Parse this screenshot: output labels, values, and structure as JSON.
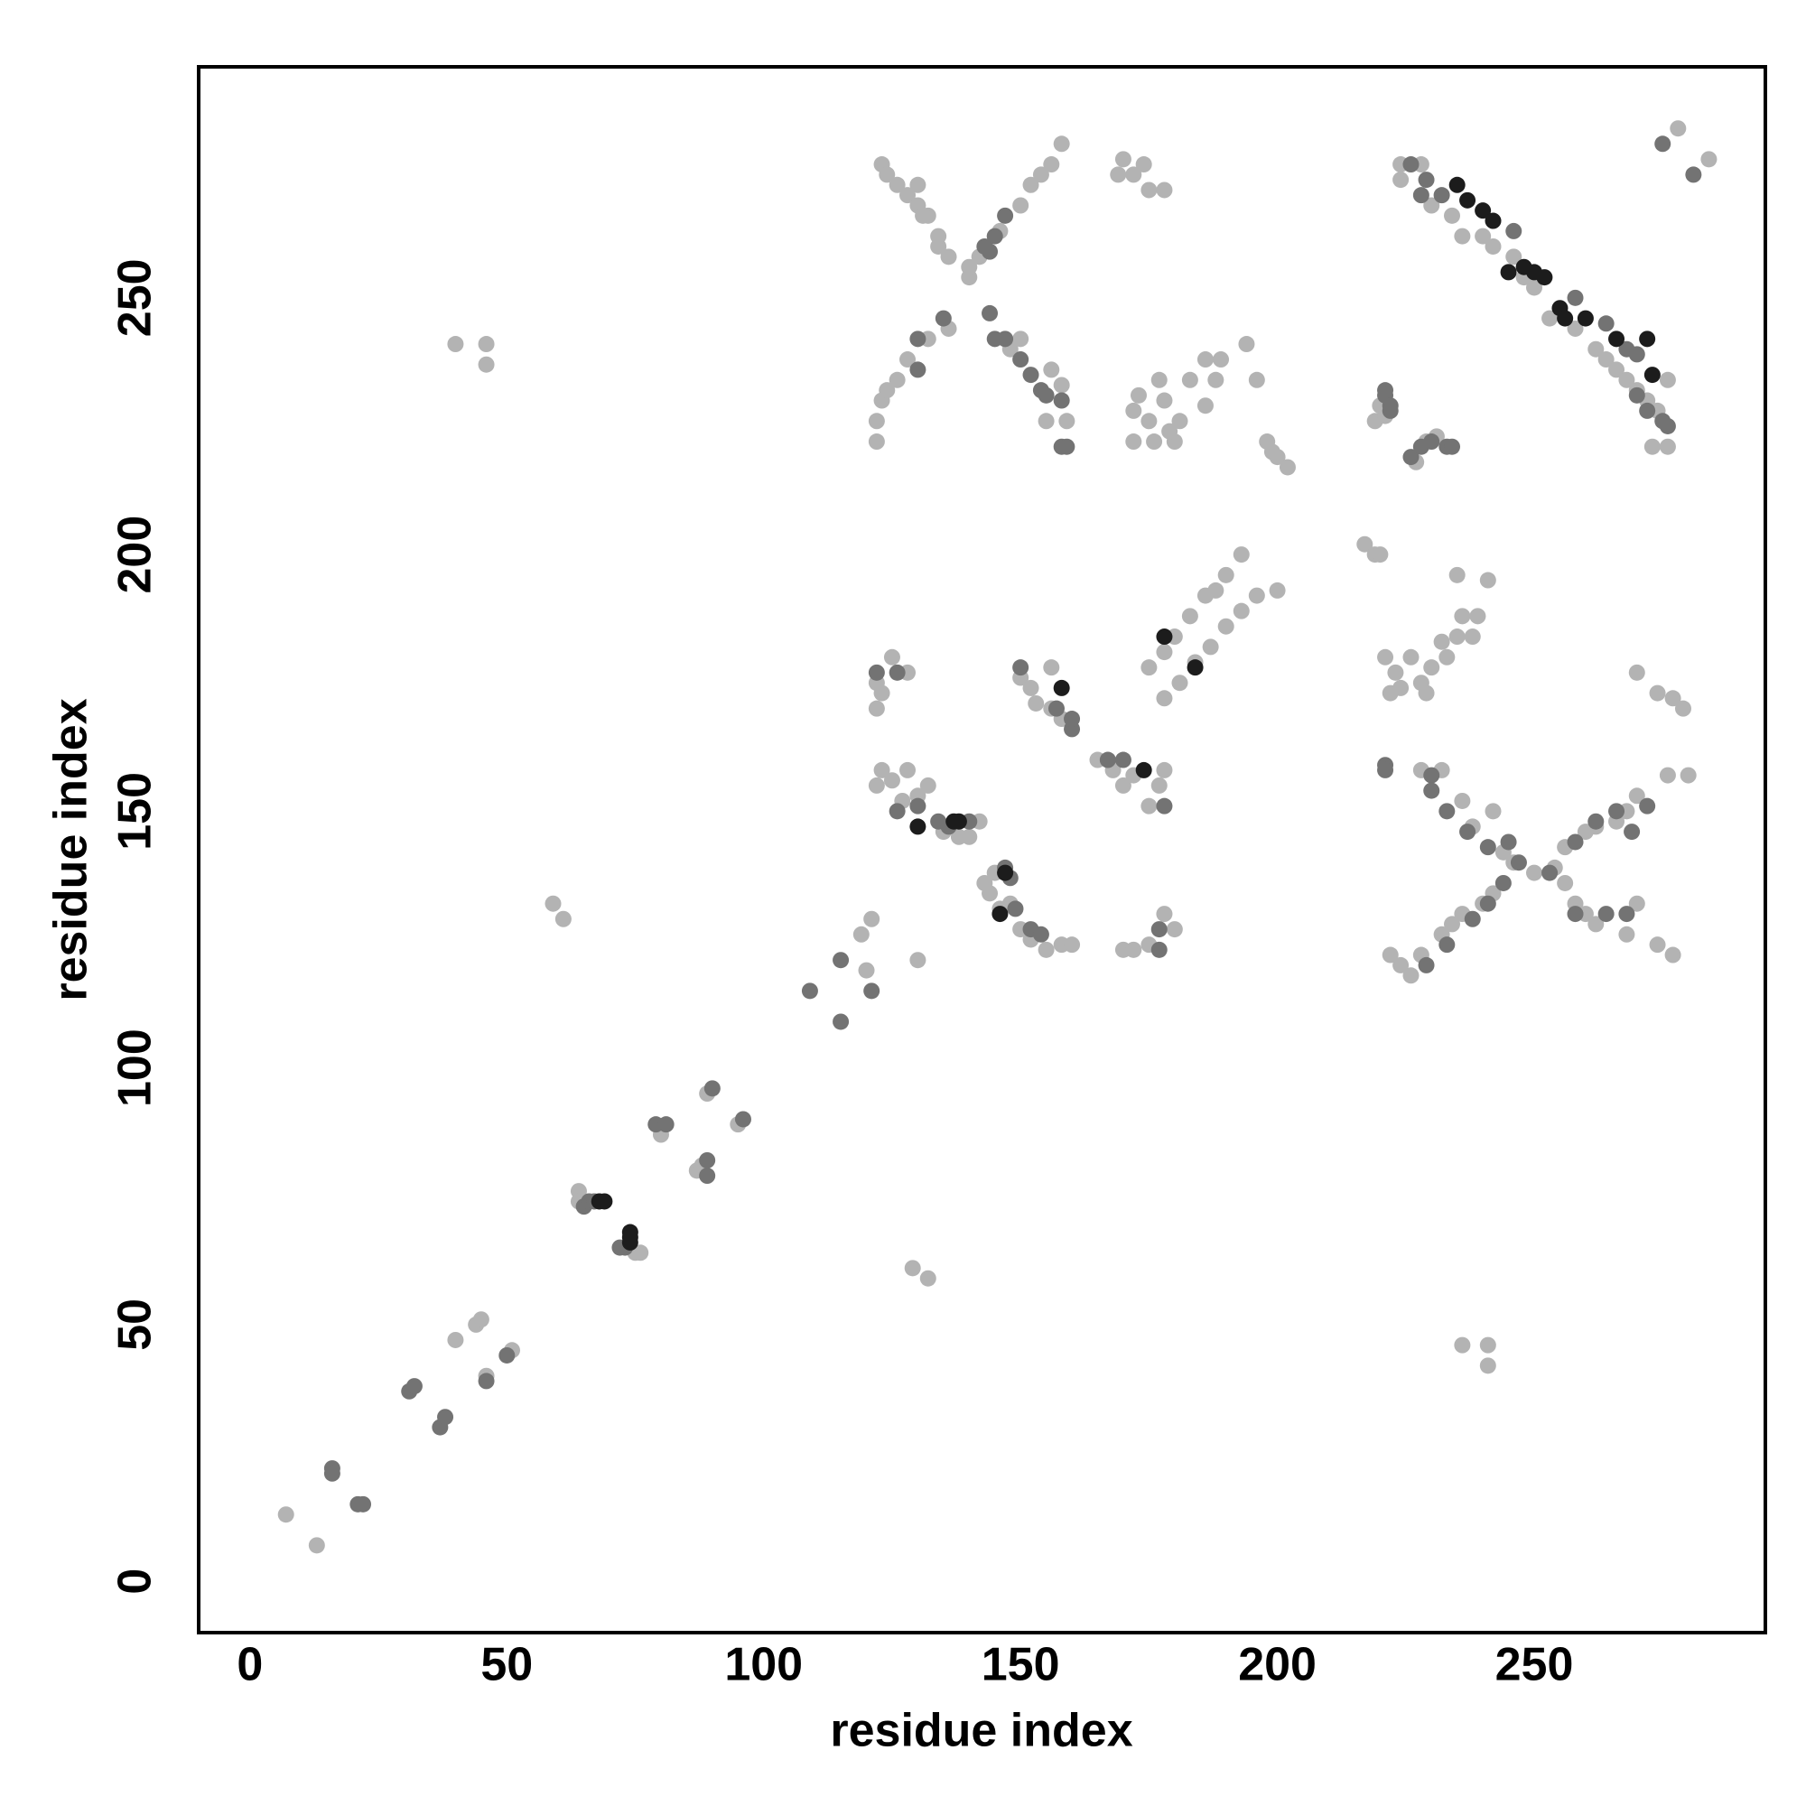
{
  "chart_data": {
    "type": "scatter",
    "xlabel": "residue index",
    "ylabel": "residue index",
    "xlim": [
      -10,
      295
    ],
    "ylim": [
      -10,
      295
    ],
    "xticks": [
      0,
      50,
      100,
      150,
      200,
      250
    ],
    "yticks": [
      0,
      50,
      100,
      150,
      200,
      250
    ],
    "series": [
      {
        "color": "#b3b3b3",
        "x": [
          7,
          13,
          40,
          44,
          46,
          51,
          45,
          59,
          61,
          40,
          46,
          46,
          64,
          64,
          75,
          76,
          80,
          87,
          88,
          89,
          95,
          119,
          121,
          120,
          130,
          129,
          132,
          122,
          122,
          123,
          124,
          126,
          128,
          132,
          136,
          140,
          142,
          146,
          150,
          152,
          154,
          156,
          158,
          123,
          124,
          126,
          128,
          130,
          132,
          134,
          136,
          140,
          148,
          150,
          156,
          158,
          159,
          155,
          130,
          131,
          134,
          170,
          172,
          174,
          175,
          178,
          169,
          172,
          172,
          173,
          175,
          177,
          178,
          180,
          181,
          183,
          186,
          186,
          188,
          189,
          176,
          179,
          194,
          196,
          198,
          199,
          200,
          202,
          219,
          220,
          221,
          227,
          229,
          231,
          224,
          224,
          228,
          230,
          234,
          236,
          240,
          242,
          246,
          248,
          250,
          253,
          258,
          262,
          264,
          266,
          268,
          270,
          272,
          274,
          276,
          273,
          276,
          278,
          284,
          122,
          122,
          123,
          125,
          128,
          122,
          123,
          125,
          127,
          128,
          130,
          132,
          135,
          138,
          140,
          142,
          143,
          144,
          145,
          148,
          150,
          152,
          155,
          158,
          160,
          146,
          150,
          152,
          153,
          156,
          156,
          158,
          165,
          168,
          170,
          172,
          175,
          178,
          177,
          170,
          172,
          175,
          178,
          180,
          175,
          178,
          180,
          183,
          186,
          188,
          190,
          193,
          178,
          181,
          184,
          187,
          190,
          193,
          196,
          200,
          217,
          219,
          220,
          221,
          223,
          224,
          226,
          228,
          230,
          232,
          233,
          235,
          236,
          238,
          239,
          235,
          241,
          229,
          222,
          228,
          232,
          236,
          238,
          242,
          244,
          246,
          250,
          254,
          256,
          260,
          262,
          266,
          268,
          270,
          276,
          280,
          222,
          224,
          226,
          228,
          232,
          234,
          236,
          240,
          242,
          256,
          258,
          260,
          262,
          268,
          270,
          274,
          277,
          270,
          274,
          277,
          279,
          236,
          241,
          241
        ],
        "values": [
          13,
          7,
          47,
          50,
          40,
          45,
          51,
          132,
          129,
          241,
          241,
          237,
          76,
          74,
          64,
          64,
          87,
          80,
          81,
          95,
          89,
          126,
          129,
          119,
          121,
          61,
          59,
          222,
          226,
          230,
          232,
          234,
          238,
          242,
          244,
          254,
          258,
          263,
          268,
          272,
          274,
          276,
          280,
          276,
          274,
          272,
          270,
          268,
          266,
          260,
          258,
          256,
          240,
          242,
          236,
          233,
          226,
          226,
          272,
          266,
          262,
          277,
          274,
          276,
          271,
          271,
          274,
          222,
          228,
          231,
          226,
          234,
          230,
          222,
          226,
          234,
          238,
          229,
          234,
          238,
          222,
          224,
          241,
          234,
          222,
          220,
          219,
          217,
          226,
          229,
          227,
          218,
          222,
          223,
          276,
          273,
          276,
          268,
          266,
          262,
          262,
          260,
          258,
          254,
          252,
          246,
          244,
          240,
          238,
          236,
          234,
          232,
          230,
          228,
          234,
          221,
          221,
          283,
          277,
          175,
          170,
          173,
          180,
          177,
          155,
          158,
          156,
          152,
          158,
          153,
          155,
          146,
          145,
          145,
          148,
          136,
          134,
          138,
          132,
          127,
          125,
          123,
          124,
          124,
          131,
          176,
          174,
          171,
          178,
          170,
          168,
          160,
          158,
          155,
          157,
          151,
          158,
          155,
          123,
          123,
          124,
          130,
          127,
          178,
          181,
          184,
          188,
          192,
          193,
          196,
          200,
          172,
          175,
          179,
          182,
          186,
          189,
          192,
          193,
          202,
          200,
          200,
          180,
          177,
          174,
          180,
          175,
          178,
          183,
          180,
          184,
          188,
          184,
          188,
          196,
          195,
          173,
          173,
          158,
          158,
          152,
          147,
          150,
          142,
          140,
          138,
          139,
          143,
          146,
          147,
          148,
          150,
          153,
          157,
          157,
          122,
          120,
          118,
          122,
          126,
          128,
          130,
          132,
          134,
          136,
          132,
          130,
          128,
          126,
          132,
          124,
          122,
          177,
          173,
          172,
          170,
          46,
          46,
          42
        ]
      },
      {
        "color": "#737373",
        "x": [
          16,
          16,
          21,
          22,
          31,
          32,
          37,
          38,
          46,
          50,
          65,
          66,
          67,
          73,
          72,
          79,
          81,
          89,
          89,
          90,
          96,
          109,
          115,
          115,
          121,
          130,
          135,
          144,
          145,
          147,
          150,
          152,
          154,
          155,
          158,
          158,
          159,
          130,
          143,
          145,
          147,
          144,
          221,
          221,
          222,
          222,
          226,
          228,
          230,
          233,
          234,
          226,
          228,
          229,
          232,
          246,
          268,
          270,
          272,
          275,
          276,
          258,
          264,
          270,
          275,
          281,
          122,
          126,
          126,
          130,
          134,
          136,
          140,
          147,
          149,
          152,
          154,
          148,
          150,
          157,
          160,
          160,
          167,
          170,
          178,
          177,
          177,
          221,
          221,
          230,
          230,
          233,
          237,
          241,
          245,
          247,
          253,
          258,
          262,
          266,
          269,
          272,
          244,
          241,
          238,
          229,
          233,
          258,
          264,
          268
        ],
        "values": [
          22,
          21,
          15,
          15,
          37,
          38,
          30,
          32,
          39,
          44,
          73,
          74,
          74,
          65,
          65,
          89,
          89,
          82,
          79,
          96,
          90,
          115,
          109,
          121,
          115,
          242,
          246,
          247,
          242,
          242,
          238,
          235,
          232,
          231,
          230,
          221,
          221,
          236,
          260,
          262,
          266,
          259,
          232,
          231,
          229,
          228,
          219,
          221,
          222,
          221,
          221,
          276,
          270,
          273,
          270,
          263,
          240,
          231,
          228,
          226,
          225,
          250,
          245,
          239,
          280,
          274,
          177,
          177,
          150,
          151,
          148,
          147,
          148,
          139,
          131,
          127,
          126,
          137,
          178,
          170,
          166,
          168,
          160,
          160,
          151,
          127,
          123,
          159,
          158,
          157,
          154,
          150,
          146,
          143,
          144,
          140,
          138,
          144,
          148,
          150,
          146,
          151,
          136,
          132,
          129,
          120,
          124,
          130,
          130,
          130
        ]
      },
      {
        "color": "#1c1c1c",
        "x": [
          68,
          69,
          74,
          74,
          74,
          235,
          237,
          240,
          242,
          245,
          248,
          250,
          252,
          255,
          256,
          260,
          266,
          272,
          273,
          130,
          137,
          138,
          146,
          147,
          158,
          174,
          178,
          184
        ],
        "values": [
          74,
          74,
          68,
          67,
          66,
          272,
          269,
          267,
          265,
          255,
          256,
          255,
          254,
          248,
          246,
          246,
          242,
          242,
          235,
          147,
          148,
          148,
          130,
          138,
          174,
          158,
          184,
          178
        ]
      }
    ]
  }
}
